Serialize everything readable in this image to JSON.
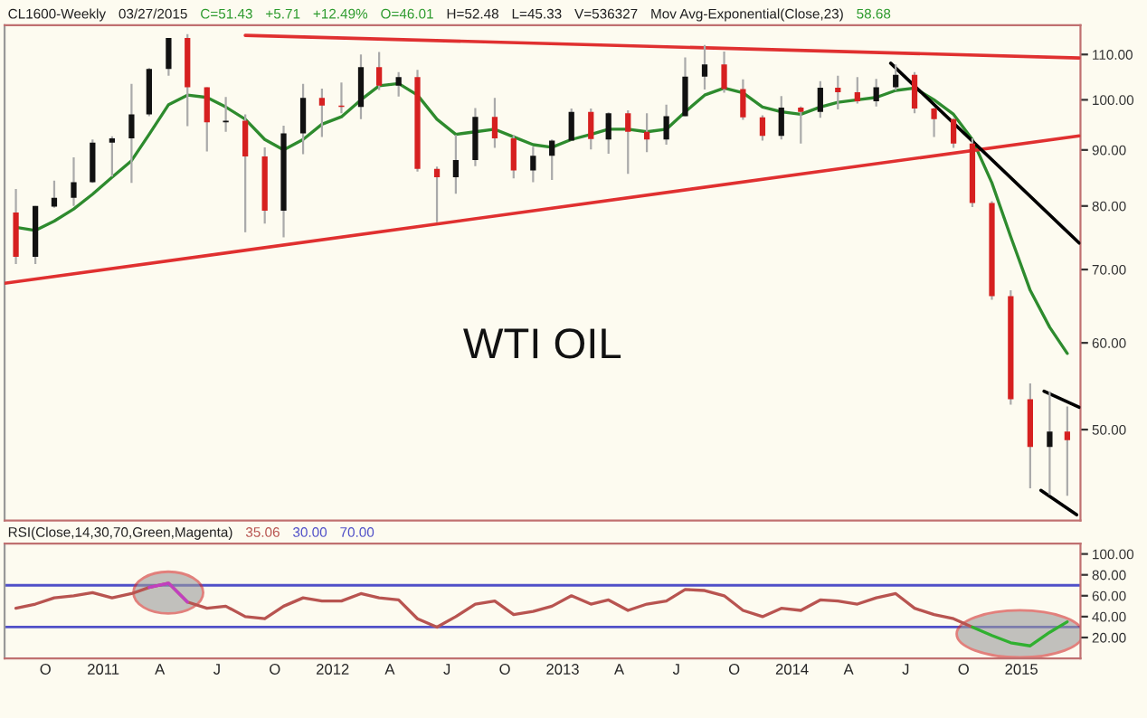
{
  "chart_data": [
    {
      "type": "candlestick",
      "title": "WTI OIL",
      "annotations": [
        "CL1600-Weekly",
        "03/27/2015",
        "C=51.43",
        "+5.71",
        "+12.49%",
        "O=46.01",
        "H=52.48",
        "L=45.33",
        "V=536327",
        "Mov Avg-Exponential(Close,23)",
        "58.68"
      ],
      "x": [
        "2010-08-15",
        "2010-09-15",
        "2010-10-15",
        "2010-11-15",
        "2010-12-15",
        "2011-01-15",
        "2011-02-15",
        "2011-03-15",
        "2011-04-15",
        "2011-05-15",
        "2011-06-15",
        "2011-07-15",
        "2011-08-15",
        "2011-09-15",
        "2011-10-15",
        "2011-11-15",
        "2011-12-15",
        "2012-01-15",
        "2012-02-15",
        "2012-03-15",
        "2012-04-15",
        "2012-05-15",
        "2012-06-15",
        "2012-07-15",
        "2012-08-15",
        "2012-09-15",
        "2012-10-15",
        "2012-11-15",
        "2012-12-15",
        "2013-01-15",
        "2013-02-15",
        "2013-03-15",
        "2013-04-15",
        "2013-05-15",
        "2013-06-15",
        "2013-07-15",
        "2013-08-15",
        "2013-09-15",
        "2013-10-15",
        "2013-11-15",
        "2013-12-15",
        "2014-01-15",
        "2014-02-15",
        "2014-03-15",
        "2014-04-15",
        "2014-05-15",
        "2014-06-15",
        "2014-07-15",
        "2014-08-15",
        "2014-09-15",
        "2014-10-15",
        "2014-11-15",
        "2014-12-15",
        "2015-01-15",
        "2015-02-15",
        "2015-03-15"
      ],
      "ohlc": [
        [
          78.9,
          82.9,
          70.8,
          71.9
        ],
        [
          71.9,
          80.0,
          70.8,
          80.0
        ],
        [
          79.9,
          84.4,
          79.7,
          81.4
        ],
        [
          81.4,
          88.6,
          80.0,
          84.1
        ],
        [
          84.1,
          92.0,
          84.0,
          91.4
        ],
        [
          91.4,
          92.6,
          85.1,
          92.2
        ],
        [
          92.2,
          103.4,
          84.0,
          97.0
        ],
        [
          97.0,
          106.9,
          96.6,
          106.7
        ],
        [
          106.7,
          113.9,
          105.2,
          113.9
        ],
        [
          113.9,
          114.8,
          94.6,
          102.7
        ],
        [
          102.7,
          102.7,
          89.7,
          95.4
        ],
        [
          95.4,
          100.6,
          93.5,
          95.7
        ],
        [
          95.7,
          97.0,
          75.7,
          88.8
        ],
        [
          88.8,
          90.5,
          77.1,
          79.2
        ],
        [
          79.2,
          94.7,
          74.9,
          93.2
        ],
        [
          93.2,
          103.4,
          89.2,
          100.4
        ],
        [
          100.4,
          102.4,
          92.5,
          98.8
        ],
        [
          98.8,
          103.7,
          97.2,
          98.5
        ],
        [
          98.5,
          110.0,
          96.0,
          107.1
        ],
        [
          107.1,
          110.6,
          102.1,
          103.0
        ],
        [
          103.0,
          106.0,
          100.7,
          104.9
        ],
        [
          104.9,
          106.5,
          86.0,
          86.5
        ],
        [
          86.5,
          86.9,
          77.3,
          85.0
        ],
        [
          85.0,
          92.9,
          82.1,
          88.1
        ],
        [
          88.1,
          98.3,
          87.0,
          96.5
        ],
        [
          96.5,
          100.4,
          90.4,
          92.2
        ],
        [
          92.2,
          92.9,
          84.8,
          86.2
        ],
        [
          86.2,
          90.6,
          84.1,
          88.9
        ],
        [
          88.9,
          92.0,
          84.5,
          91.8
        ],
        [
          91.8,
          98.2,
          91.8,
          97.5
        ],
        [
          97.5,
          98.2,
          90.1,
          92.1
        ],
        [
          92.0,
          97.4,
          89.3,
          97.2
        ],
        [
          97.2,
          97.8,
          85.6,
          93.5
        ],
        [
          93.5,
          97.2,
          89.6,
          92.0
        ],
        [
          92.0,
          99.0,
          91.0,
          96.6
        ],
        [
          96.6,
          109.3,
          96.6,
          105.0
        ],
        [
          105.0,
          112.2,
          102.2,
          107.7
        ],
        [
          107.7,
          110.7,
          101.5,
          102.3
        ],
        [
          102.3,
          104.4,
          95.9,
          96.4
        ],
        [
          96.4,
          96.8,
          91.8,
          92.7
        ],
        [
          92.7,
          100.8,
          92.0,
          98.4
        ],
        [
          98.4,
          98.6,
          91.2,
          97.5
        ],
        [
          97.5,
          104.0,
          96.3,
          102.6
        ],
        [
          102.6,
          105.2,
          98.0,
          101.6
        ],
        [
          101.6,
          104.9,
          99.2,
          99.7
        ],
        [
          99.7,
          104.5,
          98.6,
          102.7
        ],
        [
          102.7,
          107.7,
          102.0,
          105.4
        ],
        [
          105.4,
          106.0,
          97.2,
          98.2
        ],
        [
          98.2,
          98.4,
          92.5,
          96.0
        ],
        [
          96.0,
          96.2,
          90.4,
          91.2
        ],
        [
          91.2,
          92.2,
          79.8,
          80.5
        ],
        [
          80.5,
          80.8,
          65.7,
          66.2
        ],
        [
          66.2,
          67.0,
          52.7,
          53.3
        ],
        [
          53.3,
          55.1,
          44.2,
          48.2
        ],
        [
          48.2,
          54.2,
          43.6,
          49.8
        ],
        [
          49.8,
          52.5,
          43.5,
          48.9
        ]
      ],
      "series": [
        {
          "type": "line",
          "color": "#2e8b2e",
          "values": [
            76.5,
            76,
            77.5,
            79.5,
            82,
            85,
            88,
            93,
            99,
            101,
            100.5,
            98.5,
            96,
            92,
            90,
            92,
            95,
            96.5,
            100,
            103,
            103.5,
            101,
            96,
            93,
            93.5,
            94,
            92.5,
            91,
            90.5,
            92,
            93,
            94,
            94,
            93.5,
            94,
            97.5,
            101,
            102.5,
            101.5,
            98.5,
            97.5,
            97,
            98.5,
            99.5,
            100,
            100.5,
            102,
            102.5,
            100,
            97,
            92,
            84,
            75,
            67,
            62,
            58.68
          ]
        },
        {
          "type": "line",
          "color": "#e03030",
          "x": [
            "2011-08-15",
            "2015-04-03"
          ],
          "values": [
            114.5,
            109.2
          ]
        },
        {
          "type": "line",
          "color": "#e03030",
          "x": [
            "2010-07-28",
            "2015-04-03"
          ],
          "values": [
            68.0,
            92.7
          ]
        },
        {
          "type": "line",
          "color": "#000000",
          "x": [
            "2014-06-07",
            "2015-04-03"
          ],
          "values": [
            108.0,
            74.0
          ]
        },
        {
          "type": "line",
          "color": "#000000",
          "x": [
            "2015-02-06",
            "2015-04-03"
          ],
          "values": [
            54.2,
            52.4
          ]
        },
        {
          "type": "line",
          "color": "#000000",
          "x": [
            "2015-02-01",
            "2015-03-30"
          ],
          "values": [
            44.0,
            41.8
          ]
        }
      ],
      "log": "y",
      "xlim": [
        "2010-07-28",
        "2015-04-05"
      ],
      "ylim": [
        41.3,
        117
      ],
      "yticks": [
        {
          "value": 50,
          "label": "50.00"
        },
        {
          "value": 60,
          "label": "60.00"
        },
        {
          "value": 70,
          "label": "70.00"
        },
        {
          "value": 80,
          "label": "80.00"
        },
        {
          "value": 90,
          "label": "90.00"
        },
        {
          "value": 100,
          "label": "100.00"
        },
        {
          "value": 110,
          "label": "110.00"
        }
      ],
      "tick_labels": "y",
      "grid": false
    },
    {
      "type": "line",
      "annotations": [
        "RSI(Close,14,30,70,Green,Magenta)",
        "35.06",
        "30.00",
        "70.00"
      ],
      "x": [
        "2010-08-15",
        "2010-09-15",
        "2010-10-15",
        "2010-11-15",
        "2010-12-15",
        "2011-01-15",
        "2011-02-15",
        "2011-03-15",
        "2011-04-15",
        "2011-05-15",
        "2011-06-15",
        "2011-07-15",
        "2011-08-15",
        "2011-09-15",
        "2011-10-15",
        "2011-11-15",
        "2011-12-15",
        "2012-01-15",
        "2012-02-15",
        "2012-03-15",
        "2012-04-15",
        "2012-05-15",
        "2012-06-15",
        "2012-07-15",
        "2012-08-15",
        "2012-09-15",
        "2012-10-15",
        "2012-11-15",
        "2012-12-15",
        "2013-01-15",
        "2013-02-15",
        "2013-03-15",
        "2013-04-15",
        "2013-05-15",
        "2013-06-15",
        "2013-07-15",
        "2013-08-15",
        "2013-09-15",
        "2013-10-15",
        "2013-11-15",
        "2013-12-15",
        "2014-01-15",
        "2014-02-15",
        "2014-03-15",
        "2014-04-15",
        "2014-05-15",
        "2014-06-15",
        "2014-07-15",
        "2014-08-15",
        "2014-09-15",
        "2014-10-15",
        "2014-11-15",
        "2014-12-15",
        "2015-01-15",
        "2015-02-15",
        "2015-03-15"
      ],
      "series": [
        {
          "color": "#b85450",
          "values": [
            48,
            52,
            58,
            60,
            63,
            58,
            62,
            68,
            72,
            54,
            48,
            50,
            40,
            38,
            50,
            58,
            55,
            55,
            62,
            58,
            56,
            38,
            30,
            40,
            52,
            55,
            42,
            45,
            50,
            60,
            52,
            56,
            46,
            52,
            55,
            66,
            65,
            60,
            46,
            40,
            48,
            46,
            56,
            55,
            52,
            58,
            62,
            48,
            42,
            38,
            30,
            null,
            null,
            null,
            null,
            null
          ]
        },
        {
          "color": "#c040c0",
          "values": [
            null,
            null,
            null,
            null,
            null,
            null,
            null,
            68,
            72,
            54,
            null,
            null,
            null,
            null,
            null,
            null,
            null,
            null,
            null,
            null,
            null,
            null,
            null,
            null,
            null,
            null,
            null,
            null,
            null,
            null,
            null,
            null,
            null,
            null,
            null,
            null,
            null,
            null,
            null,
            null,
            null,
            null,
            null,
            null,
            null,
            null,
            null,
            null,
            null,
            null,
            null,
            null,
            null,
            null,
            null,
            null
          ]
        },
        {
          "color": "#30b030",
          "values": [
            null,
            null,
            null,
            null,
            null,
            null,
            null,
            null,
            null,
            null,
            null,
            null,
            null,
            null,
            null,
            null,
            null,
            null,
            null,
            null,
            null,
            null,
            null,
            null,
            null,
            null,
            null,
            null,
            null,
            null,
            null,
            null,
            null,
            null,
            null,
            null,
            null,
            null,
            null,
            null,
            null,
            null,
            null,
            null,
            null,
            null,
            null,
            null,
            null,
            null,
            30,
            22,
            15,
            12,
            25,
            35
          ]
        }
      ],
      "ref_lines": [
        {
          "axis": "y",
          "value": 30,
          "color": "#5050c8"
        },
        {
          "axis": "y",
          "value": 70,
          "color": "#5050c8"
        }
      ],
      "xlim": [
        "2010-07-28",
        "2015-04-05"
      ],
      "ylim": [
        0,
        110
      ],
      "xticks": [
        {
          "value": "2010-10-01",
          "label": "O"
        },
        {
          "value": "2011-01-01",
          "label": "2011"
        },
        {
          "value": "2011-04-01",
          "label": "A"
        },
        {
          "value": "2011-07-01",
          "label": "J"
        },
        {
          "value": "2011-10-01",
          "label": "O"
        },
        {
          "value": "2012-01-01",
          "label": "2012"
        },
        {
          "value": "2012-04-01",
          "label": "A"
        },
        {
          "value": "2012-07-01",
          "label": "J"
        },
        {
          "value": "2012-10-01",
          "label": "O"
        },
        {
          "value": "2013-01-01",
          "label": "2013"
        },
        {
          "value": "2013-04-01",
          "label": "A"
        },
        {
          "value": "2013-07-01",
          "label": "J"
        },
        {
          "value": "2013-10-01",
          "label": "O"
        },
        {
          "value": "2014-01-01",
          "label": "2014"
        },
        {
          "value": "2014-04-01",
          "label": "A"
        },
        {
          "value": "2014-07-01",
          "label": "J"
        },
        {
          "value": "2014-10-01",
          "label": "O"
        },
        {
          "value": "2015-01-01",
          "label": "2015"
        }
      ],
      "yticks": [
        {
          "value": 20,
          "label": "20.00"
        },
        {
          "value": 40,
          "label": "40.00"
        },
        {
          "value": 60,
          "label": "60.00"
        },
        {
          "value": 80,
          "label": "80.00"
        },
        {
          "value": 100,
          "label": "100.00"
        }
      ],
      "grid": false
    }
  ]
}
